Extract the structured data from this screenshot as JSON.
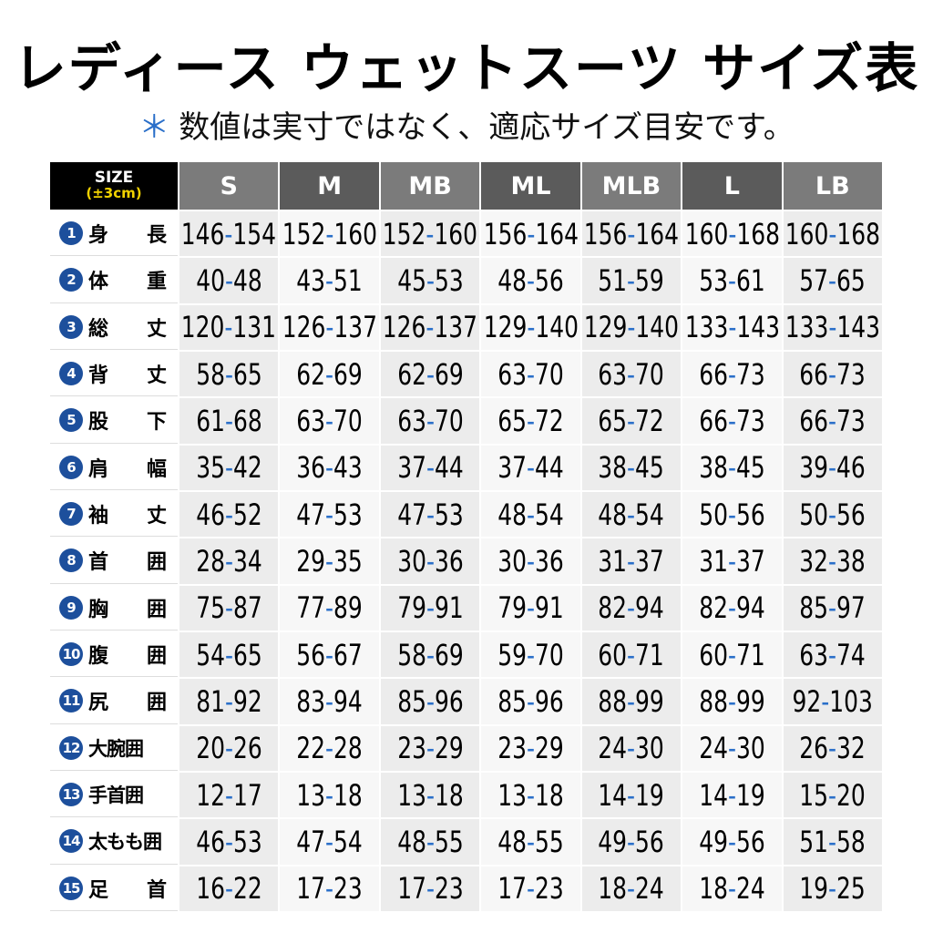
{
  "header": {
    "title": "レディース ウェットスーツ サイズ表",
    "note_mark": "＊",
    "note": "数値は実寸ではなく、適応サイズ目安です。"
  },
  "table": {
    "corner": {
      "top": "SIZE",
      "bottom": "(±3cm)"
    },
    "sizes": [
      "S",
      "M",
      "MB",
      "ML",
      "MLB",
      "L",
      "LB"
    ],
    "rows": [
      {
        "no": "1",
        "label": "身長",
        "values": [
          "146-154",
          "152-160",
          "152-160",
          "156-164",
          "156-164",
          "160-168",
          "160-168"
        ]
      },
      {
        "no": "2",
        "label": "体重",
        "values": [
          "40-48",
          "43-51",
          "45-53",
          "48-56",
          "51-59",
          "53-61",
          "57-65"
        ]
      },
      {
        "no": "3",
        "label": "総丈",
        "values": [
          "120-131",
          "126-137",
          "126-137",
          "129-140",
          "129-140",
          "133-143",
          "133-143"
        ]
      },
      {
        "no": "4",
        "label": "背丈",
        "values": [
          "58-65",
          "62-69",
          "62-69",
          "63-70",
          "63-70",
          "66-73",
          "66-73"
        ]
      },
      {
        "no": "5",
        "label": "股下",
        "values": [
          "61-68",
          "63-70",
          "63-70",
          "65-72",
          "65-72",
          "66-73",
          "66-73"
        ]
      },
      {
        "no": "6",
        "label": "肩幅",
        "values": [
          "35-42",
          "36-43",
          "37-44",
          "37-44",
          "38-45",
          "38-45",
          "39-46"
        ]
      },
      {
        "no": "7",
        "label": "袖丈",
        "values": [
          "46-52",
          "47-53",
          "47-53",
          "48-54",
          "48-54",
          "50-56",
          "50-56"
        ]
      },
      {
        "no": "8",
        "label": "首囲",
        "values": [
          "28-34",
          "29-35",
          "30-36",
          "30-36",
          "31-37",
          "31-37",
          "32-38"
        ]
      },
      {
        "no": "9",
        "label": "胸囲",
        "values": [
          "75-87",
          "77-89",
          "79-91",
          "79-91",
          "82-94",
          "82-94",
          "85-97"
        ]
      },
      {
        "no": "10",
        "label": "腹囲",
        "values": [
          "54-65",
          "56-67",
          "58-69",
          "59-70",
          "60-71",
          "60-71",
          "63-74"
        ]
      },
      {
        "no": "11",
        "label": "尻囲",
        "values": [
          "81-92",
          "83-94",
          "85-96",
          "85-96",
          "88-99",
          "88-99",
          "92-103"
        ]
      },
      {
        "no": "12",
        "label": "大腕囲",
        "values": [
          "20-26",
          "22-28",
          "23-29",
          "23-29",
          "24-30",
          "24-30",
          "26-32"
        ]
      },
      {
        "no": "13",
        "label": "手首囲",
        "values": [
          "12-17",
          "13-18",
          "13-18",
          "13-18",
          "14-19",
          "14-19",
          "15-20"
        ]
      },
      {
        "no": "14",
        "label": "太もも囲",
        "values": [
          "46-53",
          "47-54",
          "48-55",
          "48-55",
          "49-56",
          "49-56",
          "51-58"
        ]
      },
      {
        "no": "15",
        "label": "足首",
        "values": [
          "16-22",
          "17-23",
          "17-23",
          "17-23",
          "18-24",
          "18-24",
          "19-25"
        ]
      }
    ]
  }
}
